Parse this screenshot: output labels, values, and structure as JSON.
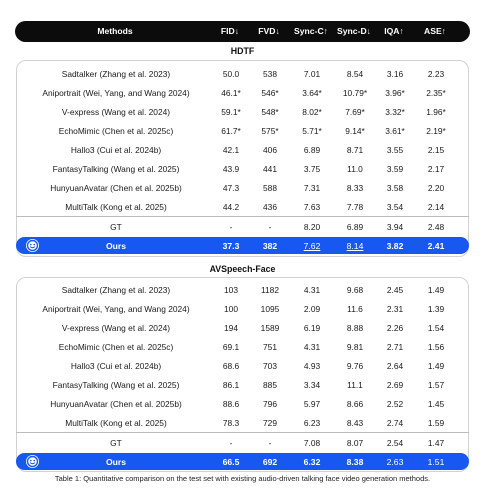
{
  "header": [
    "Methods",
    "FID↓",
    "FVD↓",
    "Sync-C↑",
    "Sync-D↓",
    "IQA↑",
    "ASE↑"
  ],
  "sections": [
    {
      "title": "HDTF",
      "rows": [
        [
          "Sadtalker (Zhang et al. 2023)",
          "50.0",
          "538",
          "7.01",
          "8.54",
          "3.16",
          "2.23"
        ],
        [
          "Aniportrait (Wei, Yang, and Wang 2024)",
          "46.1*",
          "546*",
          "3.64*",
          "10.79*",
          "3.96*",
          "2.35*"
        ],
        [
          "V-express (Wang et al. 2024)",
          "59.1*",
          "548*",
          "8.02*",
          "7.69*",
          "3.32*",
          "1.96*"
        ],
        [
          "EchoMimic (Chen et al. 2025c)",
          "61.7*",
          "575*",
          "5.71*",
          "9.14*",
          "3.61*",
          "2.19*"
        ],
        [
          "Hallo3 (Cui et al. 2024b)",
          "42.1",
          "406",
          "6.89",
          "8.71",
          "3.55",
          "2.15"
        ],
        [
          "FantasyTalking (Wang et al. 2025)",
          "43.9",
          "441",
          "3.75",
          "11.0",
          "3.59",
          "2.17"
        ],
        [
          "HunyuanAvatar (Chen et al. 2025b)",
          "47.3",
          "588",
          "7.31",
          "8.33",
          "3.58",
          "2.20"
        ],
        [
          "MultiTalk (Kong et al. 2025)",
          "44.2",
          "436",
          "7.63",
          "7.78",
          "3.54",
          "2.14"
        ],
        [
          "GT",
          "-",
          "-",
          "8.20",
          "6.89",
          "3.94",
          "2.48"
        ]
      ],
      "ours": [
        "Ours",
        "37.3",
        "382",
        "7.62",
        "8.14",
        "3.82",
        "2.41"
      ]
    },
    {
      "title": "AVSpeech-Face",
      "rows": [
        [
          "Sadtalker (Zhang et al. 2023)",
          "103",
          "1182",
          "4.31",
          "9.68",
          "2.45",
          "1.49"
        ],
        [
          "Aniportrait (Wei, Yang, and Wang 2024)",
          "100",
          "1095",
          "2.09",
          "11.6",
          "2.31",
          "1.39"
        ],
        [
          "V-express (Wang et al. 2024)",
          "194",
          "1589",
          "6.19",
          "8.88",
          "2.26",
          "1.54"
        ],
        [
          "EchoMimic (Chen et al. 2025c)",
          "69.1",
          "751",
          "4.31",
          "9.81",
          "2.71",
          "1.56"
        ],
        [
          "Hallo3 (Cui et al. 2024b)",
          "68.6",
          "703",
          "4.93",
          "9.76",
          "2.64",
          "1.49"
        ],
        [
          "FantasyTalking (Wang et al. 2025)",
          "86.1",
          "885",
          "3.34",
          "11.1",
          "2.69",
          "1.57"
        ],
        [
          "HunyuanAvatar (Chen et al. 2025b)",
          "88.6",
          "796",
          "5.97",
          "8.66",
          "2.52",
          "1.45"
        ],
        [
          "MultiTalk (Kong et al. 2025)",
          "78.3",
          "729",
          "6.23",
          "8.43",
          "2.74",
          "1.59"
        ],
        [
          "GT",
          "-",
          "-",
          "7.08",
          "8.07",
          "2.54",
          "1.47"
        ]
      ],
      "ours": [
        "Ours",
        "66.5",
        "692",
        "6.32",
        "8.38",
        "2.63",
        "1.51"
      ]
    }
  ],
  "caption": "Table 1: Quantitative comparison on the test set with existing audio-driven talking face video generation methods.",
  "colors": {
    "header_bg": "#0c0c0c",
    "ours_bg": "#1759f0",
    "panel_border": "#d2d2d2"
  },
  "icons": {
    "ours": "smiley-logo-icon"
  }
}
